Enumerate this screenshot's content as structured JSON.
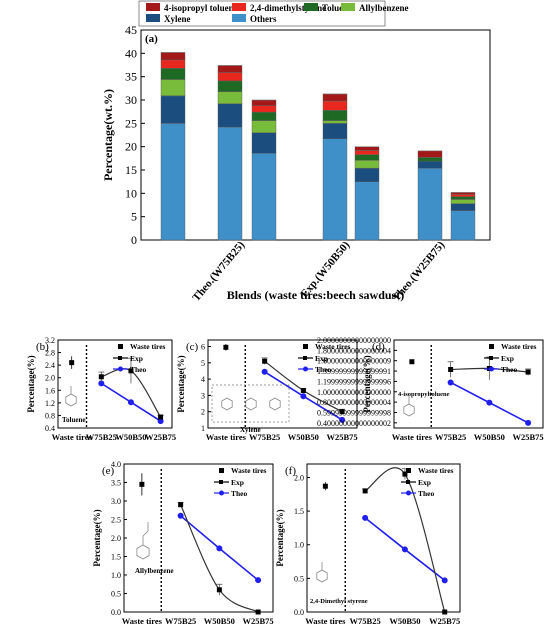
{
  "chart_data": [
    {
      "panel": "(a)",
      "type": "bar",
      "stacked": true,
      "xlabel": "Blends (waste tires:beech sawdust)",
      "ylabel": "Percentage(wt.%)",
      "ylim": [
        0,
        45
      ],
      "yticks": [
        0,
        5,
        10,
        15,
        20,
        25,
        30,
        35,
        40,
        45
      ],
      "category_labels": [
        "Theo.(W75B25)",
        "Exp.(W50B50)",
        "Theo.(W25B75)"
      ],
      "legend": [
        "4-isopropyl toluene",
        "2,4-dimethylstyrene",
        "Toluene",
        "Allylbenzene",
        "Xylene",
        "Others"
      ],
      "colors": {
        "4-isopropyl toluene": "#a31818",
        "2,4-dimethylstyrene": "#e8281e",
        "Toluene": "#1e6a24",
        "Allylbenzene": "#79bb3a",
        "Xylene": "#1b4e7e",
        "Others": "#3f8fc8"
      },
      "bars": [
        {
          "segments": {
            "Others": 25.0,
            "Xylene": 5.9,
            "Allylbenzene": 3.5,
            "Toluene": 2.4,
            "2,4-dimethylstyrene": 1.8,
            "4-isopropyl toluene": 1.6
          },
          "total": 40.2
        },
        {
          "segments": {
            "Others": 24.2,
            "Xylene": 5.0,
            "Allylbenzene": 2.6,
            "Toluene": 2.3,
            "2,4-dimethylstyrene": 1.8,
            "4-isopropyl toluene": 1.5
          },
          "total": 37.4
        },
        {
          "segments": {
            "Others": 18.6,
            "Xylene": 4.4,
            "Allylbenzene": 2.6,
            "Toluene": 1.8,
            "2,4-dimethylstyrene": 1.4,
            "4-isopropyl toluene": 1.2
          },
          "total": 30.0
        },
        {
          "segments": {
            "Others": 21.7,
            "Xylene": 3.3,
            "Allylbenzene": 0.6,
            "Toluene": 2.2,
            "2,4-dimethylstyrene": 2.0,
            "4-isopropyl toluene": 1.5
          },
          "total": 31.3
        },
        {
          "segments": {
            "Others": 12.5,
            "Xylene": 2.9,
            "Allylbenzene": 1.7,
            "Toluene": 1.2,
            "2,4-dimethylstyrene": 0.9,
            "4-isopropyl toluene": 0.8
          },
          "total": 20.0
        },
        {
          "segments": {
            "Others": 15.4,
            "Xylene": 1.5,
            "Allylbenzene": 0.0,
            "Toluene": 0.8,
            "2,4-dimethylstyrene": 0.0,
            "4-isopropyl toluene": 1.4
          },
          "total": 19.1
        },
        {
          "segments": {
            "Others": 6.3,
            "Xylene": 1.5,
            "Allylbenzene": 0.9,
            "Toluene": 0.6,
            "2,4-dimethylstyrene": 0.5,
            "4-isopropyl toluene": 0.4
          },
          "total": 10.2
        }
      ]
    },
    {
      "panel": "(b)",
      "type": "line",
      "compound_label": "Toluene",
      "ylabel": "Percentage(%)",
      "ylim": [
        0.4,
        3.2
      ],
      "yticks": [
        0.4,
        0.8,
        1.2,
        1.6,
        2.0,
        2.4,
        2.8,
        3.2
      ],
      "x_labels": [
        "Waste tires",
        "W75B25",
        "W50B50",
        "W25B75"
      ],
      "legend": [
        "Waste tires",
        "Exp",
        "Theo"
      ],
      "waste_tires": 2.48,
      "waste_tires_err": 0.2,
      "exp": [
        2.03,
        2.22,
        0.75
      ],
      "exp_err": [
        0.15,
        0.4,
        0.05
      ],
      "theo": [
        1.82,
        1.22,
        0.62
      ]
    },
    {
      "panel": "(c)",
      "type": "line",
      "compound_label": "Xylene",
      "ylabel": "Percentage(%)",
      "ylim": [
        1,
        6.4
      ],
      "yticks": [
        1,
        2,
        3,
        4,
        5,
        6
      ],
      "x_labels": [
        "Waste tires",
        "W75B25",
        "W50B50",
        "W25B75"
      ],
      "legend": [
        "Waste tires",
        "Exp",
        "Theo"
      ],
      "waste_tires": 5.95,
      "waste_tires_err": 0.2,
      "exp": [
        5.1,
        3.3,
        2.0
      ],
      "exp_err": [
        0.2,
        0.1,
        0.15
      ],
      "theo": [
        4.45,
        2.95,
        1.5
      ]
    },
    {
      "panel": "(d)",
      "type": "line",
      "compound_label": "4-isopropyltoluene",
      "ylabel": "Percentage(%)",
      "ylim": [
        0.3,
        2.0
      ],
      "yticks": [
        0.4,
        0.6,
        0.8,
        1.0,
        1.2,
        1.4,
        1.6,
        1.8,
        2.0
      ],
      "x_labels": [
        "Waste tires",
        "W75B25",
        "W50B50",
        "W25B75"
      ],
      "legend": [
        "Waste tires",
        "Exp",
        "Theo"
      ],
      "waste_tires": 1.58,
      "waste_tires_err": 0.02,
      "exp": [
        1.43,
        1.45,
        1.38
      ],
      "exp_err": [
        0.15,
        0.22,
        0.06
      ],
      "theo": [
        1.18,
        0.79,
        0.4
      ]
    },
    {
      "panel": "(e)",
      "type": "line",
      "compound_label": "Allylbenzene",
      "ylabel": "Percentage(%)",
      "ylim": [
        0,
        4.0
      ],
      "yticks": [
        0.0,
        0.5,
        1.0,
        1.5,
        2.0,
        2.5,
        3.0,
        3.5,
        4.0
      ],
      "x_labels": [
        "Waste tires",
        "W75B25",
        "W50B50",
        "W25B75"
      ],
      "legend": [
        "Waste tires",
        "Exp",
        "Theo"
      ],
      "waste_tires": 3.45,
      "waste_tires_err": 0.3,
      "exp": [
        2.9,
        0.6,
        0.0
      ],
      "exp_err": [
        0.06,
        0.15,
        0.0
      ],
      "theo": [
        2.6,
        1.72,
        0.86
      ]
    },
    {
      "panel": "(f)",
      "type": "line",
      "compound_label": "2,4-Dimethyl styrene",
      "ylabel": "Percentage(%)",
      "ylim": [
        0,
        2.2
      ],
      "yticks": [
        0.0,
        0.5,
        1.0,
        1.5,
        2.0
      ],
      "x_labels": [
        "Waste tires",
        "W75B25",
        "W50B50",
        "W25B75"
      ],
      "legend": [
        "Waste tires",
        "Exp",
        "Theo"
      ],
      "waste_tires": 1.87,
      "waste_tires_err": 0.06,
      "exp": [
        1.8,
        2.05,
        0.0
      ],
      "exp_err": [
        0.03,
        0.08,
        0.0
      ],
      "theo": [
        1.4,
        0.93,
        0.47
      ]
    }
  ]
}
